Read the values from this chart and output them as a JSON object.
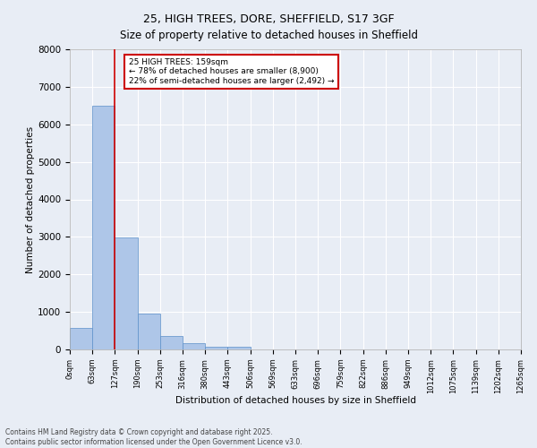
{
  "title_line1": "25, HIGH TREES, DORE, SHEFFIELD, S17 3GF",
  "title_line2": "Size of property relative to detached houses in Sheffield",
  "xlabel": "Distribution of detached houses by size in Sheffield",
  "ylabel": "Number of detached properties",
  "bar_values": [
    580,
    6500,
    2980,
    960,
    370,
    160,
    80,
    60,
    0,
    0,
    0,
    0,
    0,
    0,
    0,
    0,
    0,
    0,
    0,
    0
  ],
  "bar_labels": [
    "0sqm",
    "63sqm",
    "127sqm",
    "190sqm",
    "253sqm",
    "316sqm",
    "380sqm",
    "443sqm",
    "506sqm",
    "569sqm",
    "633sqm",
    "696sqm",
    "759sqm",
    "822sqm",
    "886sqm",
    "949sqm",
    "1012sqm",
    "1075sqm",
    "1139sqm",
    "1202sqm",
    "1265sqm"
  ],
  "bar_color": "#aec6e8",
  "bar_edge_color": "#5b8fc9",
  "vline_x": 2,
  "vline_color": "#cc0000",
  "annotation_text": "25 HIGH TREES: 159sqm\n← 78% of detached houses are smaller (8,900)\n22% of semi-detached houses are larger (2,492) →",
  "annotation_box_color": "#cc0000",
  "annotation_text_color": "#000000",
  "ylim": [
    0,
    8000
  ],
  "yticks": [
    0,
    1000,
    2000,
    3000,
    4000,
    5000,
    6000,
    7000,
    8000
  ],
  "background_color": "#e8edf5",
  "plot_bg_color": "#e8edf5",
  "grid_color": "#ffffff",
  "footer_line1": "Contains HM Land Registry data © Crown copyright and database right 2025.",
  "footer_line2": "Contains public sector information licensed under the Open Government Licence v3.0."
}
